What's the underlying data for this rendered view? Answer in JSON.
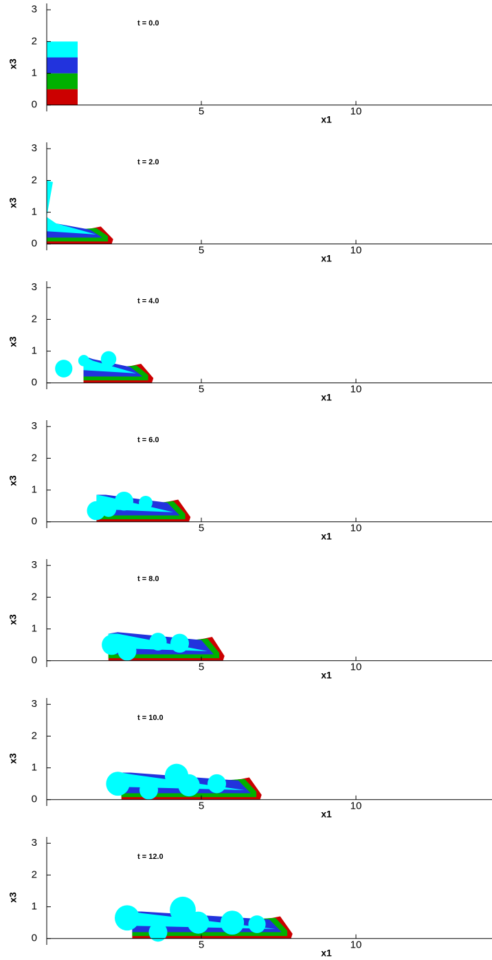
{
  "chart_data": [
    {
      "type": "field",
      "title": "t = 0.0",
      "xlabel": "x1",
      "ylabel": "x3",
      "xlim": [
        0,
        14.4
      ],
      "ylim": [
        -0.2,
        3.2
      ],
      "xticks": [
        5,
        10
      ],
      "yticks": [
        0,
        1,
        2,
        3
      ]
    },
    {
      "type": "field",
      "title": "t = 2.0",
      "xlabel": "x1",
      "ylabel": "x3",
      "xlim": [
        0,
        14.4
      ],
      "ylim": [
        -0.2,
        3.2
      ],
      "xticks": [
        5,
        10
      ],
      "yticks": [
        0,
        1,
        2,
        3
      ]
    },
    {
      "type": "field",
      "title": "t = 4.0",
      "xlabel": "x1",
      "ylabel": "x3",
      "xlim": [
        0,
        14.4
      ],
      "ylim": [
        -0.2,
        3.2
      ],
      "xticks": [
        5,
        10
      ],
      "yticks": [
        0,
        1,
        2,
        3
      ]
    },
    {
      "type": "field",
      "title": "t = 6.0",
      "xlabel": "x1",
      "ylabel": "x3",
      "xlim": [
        0,
        14.4
      ],
      "ylim": [
        -0.2,
        3.2
      ],
      "xticks": [
        5,
        10
      ],
      "yticks": [
        0,
        1,
        2,
        3
      ]
    },
    {
      "type": "field",
      "title": "t = 8.0",
      "xlabel": "x1",
      "ylabel": "x3",
      "xlim": [
        0,
        14.4
      ],
      "ylim": [
        -0.2,
        3.2
      ],
      "xticks": [
        5,
        10
      ],
      "yticks": [
        0,
        1,
        2,
        3
      ]
    },
    {
      "type": "field",
      "title": "t = 10.0",
      "xlabel": "x1",
      "ylabel": "x3",
      "xlim": [
        0,
        14.4
      ],
      "ylim": [
        -0.2,
        3.2
      ],
      "xticks": [
        5,
        10
      ],
      "yticks": [
        0,
        1,
        2,
        3
      ]
    },
    {
      "type": "field",
      "title": "t = 12.0",
      "xlabel": "x1",
      "ylabel": "x3",
      "xlim": [
        0,
        14.4
      ],
      "ylim": [
        -0.2,
        3.2
      ],
      "xticks": [
        5,
        10
      ],
      "yticks": [
        0,
        1,
        2,
        3
      ]
    }
  ]
}
